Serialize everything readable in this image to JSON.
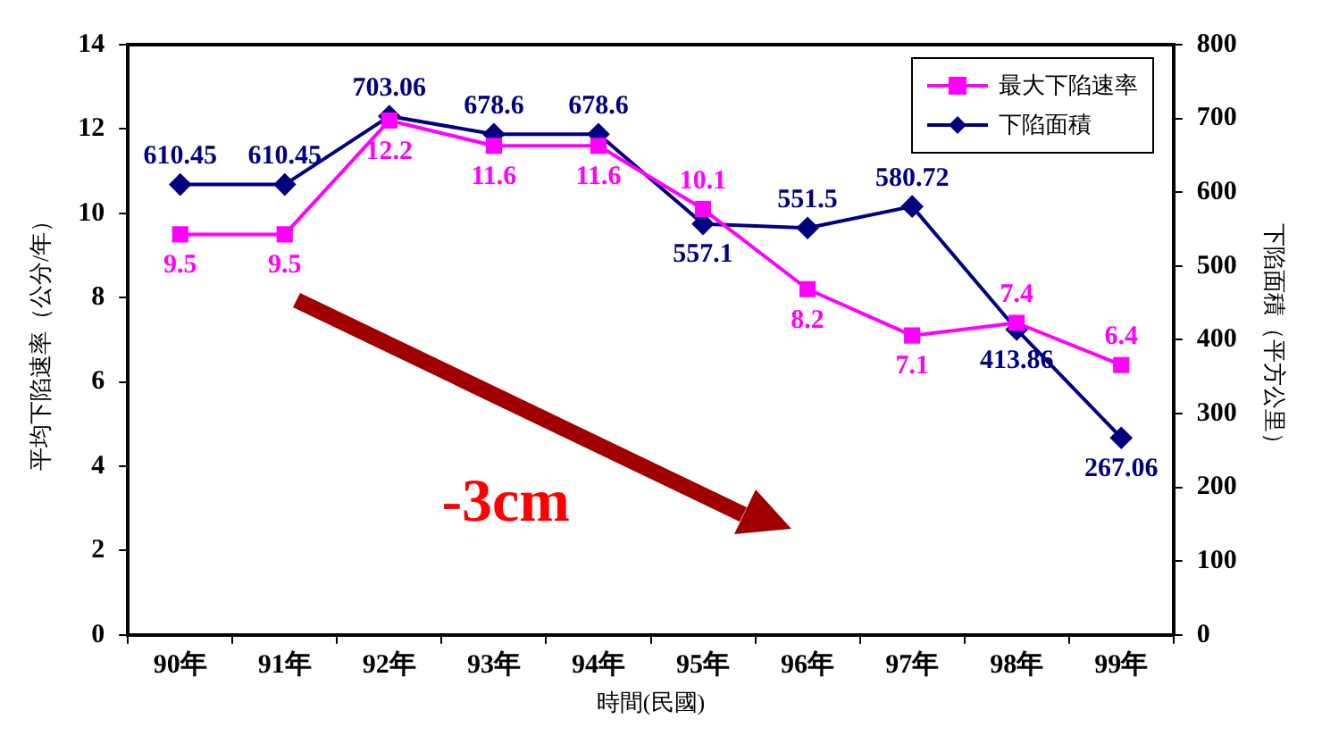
{
  "chart_data": {
    "type": "line",
    "xlabel": "時間(民國)",
    "ylabel": "平均下陷速率（公分/年）",
    "y2label": "下陷面積（平方公里）",
    "categories": [
      "90年",
      "91年",
      "92年",
      "93年",
      "94年",
      "95年",
      "96年",
      "97年",
      "98年",
      "99年"
    ],
    "series": [
      {
        "name": "最大下陷速率",
        "color": "#ff00ff",
        "marker": "square",
        "values": [
          9.5,
          9.5,
          12.2,
          11.6,
          11.6,
          10.1,
          8.2,
          7.1,
          7.4,
          6.4
        ]
      },
      {
        "name": "下陷面積",
        "color": "#000080",
        "marker": "diamond",
        "axis": "y2",
        "values": [
          610.45,
          610.45,
          703.06,
          678.6,
          678.6,
          557.1,
          551.5,
          580.72,
          413.86,
          267.06
        ]
      }
    ],
    "ylim": [
      0,
      14
    ],
    "yticks": [
      0,
      2,
      4,
      6,
      8,
      10,
      12,
      14
    ],
    "y2lim": [
      0,
      800
    ],
    "y2ticks": [
      0,
      100,
      200,
      300,
      400,
      500,
      600,
      700,
      800
    ],
    "data_labels": true,
    "grid": false,
    "legend": "top right",
    "annotations": [
      "-3cm"
    ]
  }
}
